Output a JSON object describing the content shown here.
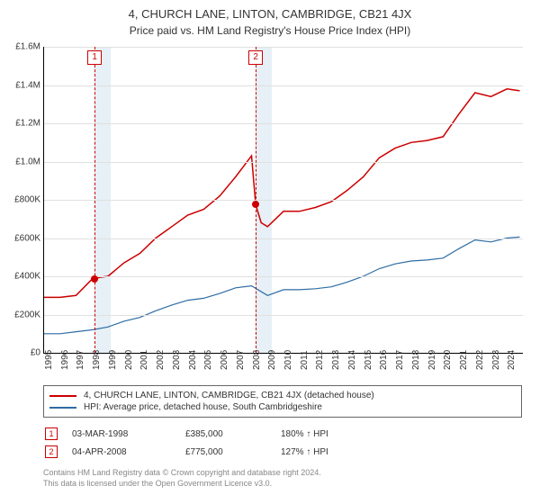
{
  "title": "4, CHURCH LANE, LINTON, CAMBRIDGE, CB21 4JX",
  "subtitle": "Price paid vs. HM Land Registry's House Price Index (HPI)",
  "chart": {
    "type": "line",
    "background_color": "#ffffff",
    "grid_color": "#e0e0e0",
    "axis_color": "#000000",
    "shade_color": "#dce9f2",
    "font_size_axis": 10,
    "font_size_title": 13,
    "font_size_subtitle": 12,
    "ylim": [
      0,
      1600000
    ],
    "ytick_step": 200000,
    "yticks": [
      "£0",
      "£200K",
      "£400K",
      "£600K",
      "£800K",
      "£1.0M",
      "£1.2M",
      "£1.4M",
      "£1.6M"
    ],
    "xlim": [
      1995,
      2025
    ],
    "xticks": [
      "1995",
      "1996",
      "1997",
      "1998",
      "1999",
      "2000",
      "2001",
      "2002",
      "2003",
      "2004",
      "2005",
      "2006",
      "2007",
      "2008",
      "2009",
      "2010",
      "2011",
      "2012",
      "2013",
      "2014",
      "2015",
      "2016",
      "2017",
      "2018",
      "2019",
      "2020",
      "2021",
      "2022",
      "2023",
      "2024"
    ],
    "shade_ranges": [
      [
        1998.17,
        1999.17
      ],
      [
        2008.26,
        2009.26
      ]
    ],
    "markers": [
      {
        "id": "1",
        "x": 1998.17,
        "y": 385000,
        "dot_color": "#cc0000"
      },
      {
        "id": "2",
        "x": 2008.26,
        "y": 775000,
        "dot_color": "#cc0000"
      }
    ],
    "series": [
      {
        "name": "red",
        "color": "#cc0000",
        "line_width": 1.5,
        "data": [
          [
            1995,
            290000
          ],
          [
            1996,
            290000
          ],
          [
            1997,
            300000
          ],
          [
            1998,
            385000
          ],
          [
            1998.5,
            395000
          ],
          [
            1999,
            400000
          ],
          [
            2000,
            470000
          ],
          [
            2001,
            520000
          ],
          [
            2002,
            600000
          ],
          [
            2003,
            660000
          ],
          [
            2004,
            720000
          ],
          [
            2005,
            750000
          ],
          [
            2006,
            820000
          ],
          [
            2007,
            920000
          ],
          [
            2008,
            1030000
          ],
          [
            2008.26,
            775000
          ],
          [
            2008.6,
            680000
          ],
          [
            2009,
            660000
          ],
          [
            2010,
            740000
          ],
          [
            2011,
            740000
          ],
          [
            2012,
            760000
          ],
          [
            2013,
            790000
          ],
          [
            2014,
            850000
          ],
          [
            2015,
            920000
          ],
          [
            2016,
            1020000
          ],
          [
            2017,
            1070000
          ],
          [
            2018,
            1100000
          ],
          [
            2019,
            1110000
          ],
          [
            2020,
            1130000
          ],
          [
            2021,
            1250000
          ],
          [
            2022,
            1360000
          ],
          [
            2023,
            1340000
          ],
          [
            2024,
            1380000
          ],
          [
            2024.8,
            1370000
          ]
        ]
      },
      {
        "name": "blue",
        "color": "#2e6ca4",
        "line_width": 1.2,
        "data": [
          [
            1995,
            100000
          ],
          [
            1996,
            100000
          ],
          [
            1997,
            110000
          ],
          [
            1998,
            120000
          ],
          [
            1999,
            135000
          ],
          [
            2000,
            165000
          ],
          [
            2001,
            185000
          ],
          [
            2002,
            220000
          ],
          [
            2003,
            250000
          ],
          [
            2004,
            275000
          ],
          [
            2005,
            285000
          ],
          [
            2006,
            310000
          ],
          [
            2007,
            340000
          ],
          [
            2008,
            350000
          ],
          [
            2009,
            300000
          ],
          [
            2010,
            330000
          ],
          [
            2011,
            330000
          ],
          [
            2012,
            335000
          ],
          [
            2013,
            345000
          ],
          [
            2014,
            370000
          ],
          [
            2015,
            400000
          ],
          [
            2016,
            440000
          ],
          [
            2017,
            465000
          ],
          [
            2018,
            480000
          ],
          [
            2019,
            485000
          ],
          [
            2020,
            495000
          ],
          [
            2021,
            545000
          ],
          [
            2022,
            590000
          ],
          [
            2023,
            580000
          ],
          [
            2024,
            600000
          ],
          [
            2024.8,
            605000
          ]
        ]
      }
    ]
  },
  "legend": {
    "rows": [
      {
        "color": "#cc0000",
        "label": "4, CHURCH LANE, LINTON, CAMBRIDGE, CB21 4JX (detached house)"
      },
      {
        "color": "#2e6ca4",
        "label": "HPI: Average price, detached house, South Cambridgeshire"
      }
    ]
  },
  "sales": [
    {
      "id": "1",
      "date": "03-MAR-1998",
      "price": "£385,000",
      "hpi": "180% ↑ HPI"
    },
    {
      "id": "2",
      "date": "04-APR-2008",
      "price": "£775,000",
      "hpi": "127% ↑ HPI"
    }
  ],
  "footnote_line1": "Contains HM Land Registry data © Crown copyright and database right 2024.",
  "footnote_line2": "This data is licensed under the Open Government Licence v3.0."
}
